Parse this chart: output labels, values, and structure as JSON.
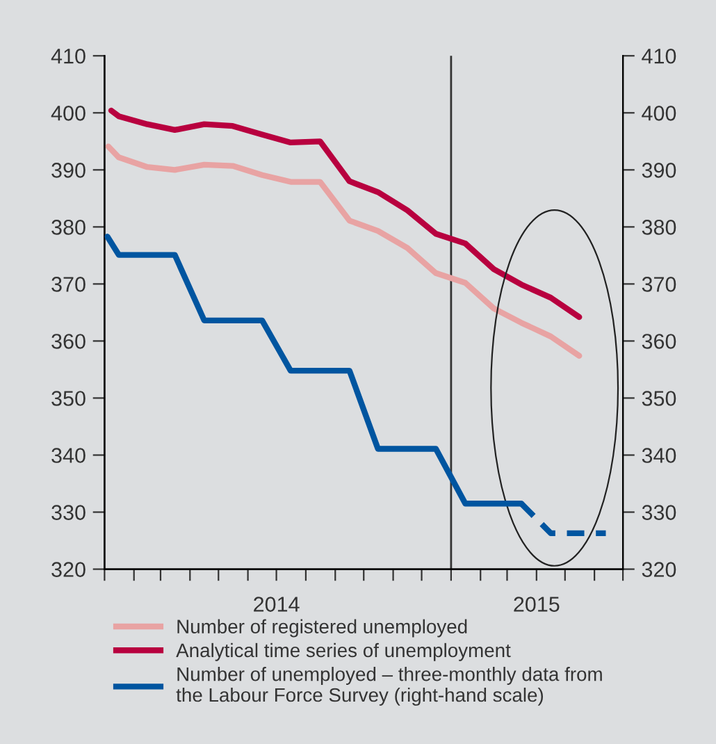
{
  "chart_data": {
    "type": "line",
    "xlim": [
      "2014-01-01",
      "2015-07-01"
    ],
    "xticks": [
      {
        "value": "2014-01",
        "label": null
      },
      {
        "value": "2014-02",
        "label": null
      },
      {
        "value": "2014-03",
        "label": null
      },
      {
        "value": "2014-04",
        "label": null
      },
      {
        "value": "2014-05",
        "label": null
      },
      {
        "value": "2014-06",
        "label": null
      },
      {
        "value": "2014-07",
        "label": "2014"
      },
      {
        "value": "2014-08",
        "label": null
      },
      {
        "value": "2014-09",
        "label": null
      },
      {
        "value": "2014-10",
        "label": null
      },
      {
        "value": "2014-11",
        "label": null
      },
      {
        "value": "2014-12",
        "label": null
      },
      {
        "value": "2015-01",
        "label": null
      },
      {
        "value": "2015-02",
        "label": null
      },
      {
        "value": "2015-03",
        "label": null
      },
      {
        "value": "2015-04",
        "label": "2015"
      },
      {
        "value": "2015-05",
        "label": null
      },
      {
        "value": "2015-06",
        "label": null
      },
      {
        "value": "2015-07",
        "label": null
      }
    ],
    "ylim": [
      320,
      410
    ],
    "yticks": [
      320,
      330,
      340,
      350,
      360,
      370,
      380,
      390,
      400,
      410
    ],
    "y2lim": [
      320,
      410
    ],
    "y2ticks": [
      320,
      330,
      340,
      350,
      360,
      370,
      380,
      390,
      400,
      410
    ],
    "grid": false,
    "legend": "bottom",
    "line_style": "solid",
    "marker": "none",
    "ref_lines": [
      {
        "axis": "x",
        "value": "2015-01-01",
        "color": "#333333"
      }
    ],
    "series": [
      {
        "name": "Number of registered unemployed",
        "color": "#e8a3a3",
        "x": [
          "2014-01-05",
          "2014-01-16",
          "2014-02-15",
          "2014-03-16",
          "2014-04-16",
          "2014-05-16",
          "2014-06-16",
          "2014-07-16",
          "2014-08-16",
          "2014-09-16",
          "2014-10-16",
          "2014-11-16",
          "2014-12-16",
          "2015-01-16",
          "2015-02-15",
          "2015-03-16",
          "2015-04-16",
          "2015-05-16"
        ],
        "values": [
          394.1,
          392.2,
          390.5,
          390.0,
          390.9,
          390.7,
          389.1,
          387.9,
          387.9,
          381.1,
          379.3,
          376.3,
          371.9,
          370.2,
          365.7,
          363.2,
          360.8,
          357.4
        ]
      },
      {
        "name": "Analytical time series of unemployment",
        "color": "#b8003f",
        "x": [
          "2014-01-08",
          "2014-01-16",
          "2014-02-15",
          "2014-03-16",
          "2014-04-16",
          "2014-05-16",
          "2014-06-16",
          "2014-07-16",
          "2014-08-16",
          "2014-09-16",
          "2014-10-16",
          "2014-11-16",
          "2014-12-16",
          "2015-01-16",
          "2015-02-15",
          "2015-03-16",
          "2015-04-16",
          "2015-05-16"
        ],
        "values": [
          400.4,
          399.4,
          398.0,
          397.0,
          398.0,
          397.7,
          396.2,
          394.8,
          395.0,
          388.0,
          386.1,
          382.9,
          378.8,
          377.1,
          372.6,
          369.9,
          367.6,
          364.2
        ]
      },
      {
        "name": "Number of unemployed – three-monthly data from\nthe Labour Force Survey (right-hand scale)",
        "color": "#0055a0",
        "axis": "y2",
        "x": [
          "2014-01-04",
          "2014-01-16",
          "2014-03-16",
          "2014-04-16",
          "2014-06-16",
          "2014-07-16",
          "2014-09-16",
          "2014-10-16",
          "2014-12-16",
          "2015-01-16",
          "2015-03-16"
        ],
        "values": [
          378.3,
          375.1,
          375.1,
          363.6,
          363.6,
          354.8,
          354.8,
          341.1,
          341.1,
          331.5,
          331.5
        ]
      },
      {
        "color": "#0055a0",
        "axis": "y2",
        "line_style": "dashed",
        "x": [
          "2015-03-16",
          "2015-04-16",
          "2015-06-13"
        ],
        "values": [
          331.5,
          326.3,
          326.3
        ]
      }
    ]
  }
}
